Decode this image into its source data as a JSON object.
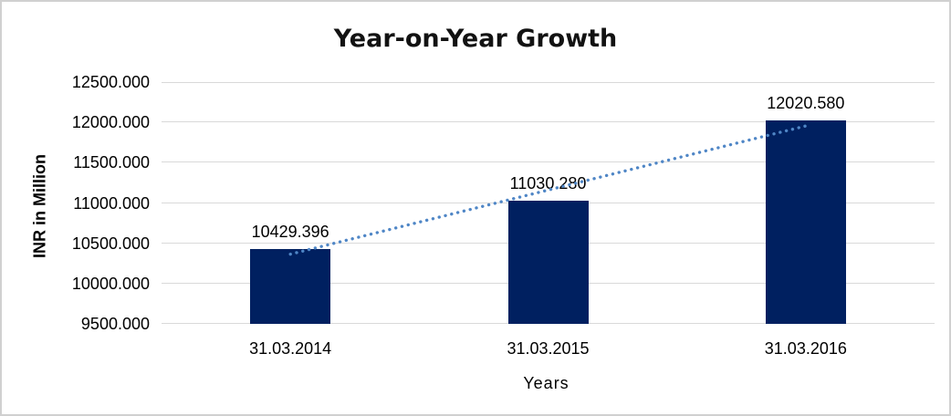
{
  "frame": {
    "background": "#ffffff",
    "border_color": "#d0d0d0"
  },
  "chart_data": {
    "type": "bar",
    "title": "Year-on-Year Growth",
    "categories": [
      "31.03.2014",
      "31.03.2015",
      "31.03.2016"
    ],
    "values": [
      10429.396,
      11030.28,
      12020.58
    ],
    "data_labels": [
      "10429.396",
      "11030.280",
      "12020.580"
    ],
    "xlabel": "Years",
    "ylabel": "INR in Million",
    "ylim": [
      9500,
      12500
    ],
    "ytick_step": 500,
    "ytick_labels_top_to_bottom": [
      "12500.000",
      "12000.000",
      "11500.000",
      "11000.000",
      "10500.000",
      "10000.000",
      "9500.000"
    ],
    "grid": true,
    "legend": false,
    "trendline": {
      "type": "linear",
      "style": "dotted"
    },
    "colors": {
      "bar": "#002060",
      "trendline": "#4f86c6",
      "gridline": "#d9d9d9",
      "text": "#000000"
    }
  }
}
